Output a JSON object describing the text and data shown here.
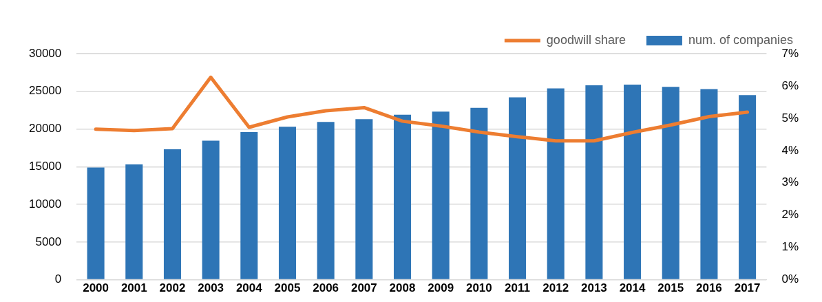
{
  "chart_data": {
    "type": "bar",
    "categories": [
      "2000",
      "2001",
      "2002",
      "2003",
      "2004",
      "2005",
      "2006",
      "2007",
      "2008",
      "2009",
      "2010",
      "2011",
      "2012",
      "2013",
      "2014",
      "2015",
      "2016",
      "2017"
    ],
    "series": [
      {
        "name": "num. of companies",
        "color": "#2e75b6",
        "values": [
          14900,
          15300,
          17300,
          18450,
          19600,
          20300,
          20950,
          21300,
          21900,
          22300,
          22800,
          24200,
          25400,
          25800,
          25900,
          25600,
          25300,
          24500
        ]
      },
      {
        "name": "goodwill share",
        "type": "line",
        "axis": "y2",
        "color": "#ed7d31",
        "marker": "none",
        "values": [
          4.66,
          4.62,
          4.68,
          6.27,
          4.72,
          5.04,
          5.23,
          5.33,
          4.91,
          4.76,
          4.57,
          4.43,
          4.3,
          4.3,
          4.56,
          4.79,
          5.05,
          5.19
        ]
      }
    ],
    "ylim": [
      0,
      30000
    ],
    "yticks": [
      0,
      5000,
      10000,
      15000,
      20000,
      25000,
      30000
    ],
    "y2lim": [
      0,
      7
    ],
    "y2ticks": [
      {
        "value": 0,
        "label": "0%"
      },
      {
        "value": 1,
        "label": "1%"
      },
      {
        "value": 2,
        "label": "2%"
      },
      {
        "value": 3,
        "label": "3%"
      },
      {
        "value": 4,
        "label": "4%"
      },
      {
        "value": 5,
        "label": "5%"
      },
      {
        "value": 6,
        "label": "6%"
      },
      {
        "value": 7,
        "label": "7%"
      }
    ],
    "grid": "y",
    "legend": "top right"
  }
}
